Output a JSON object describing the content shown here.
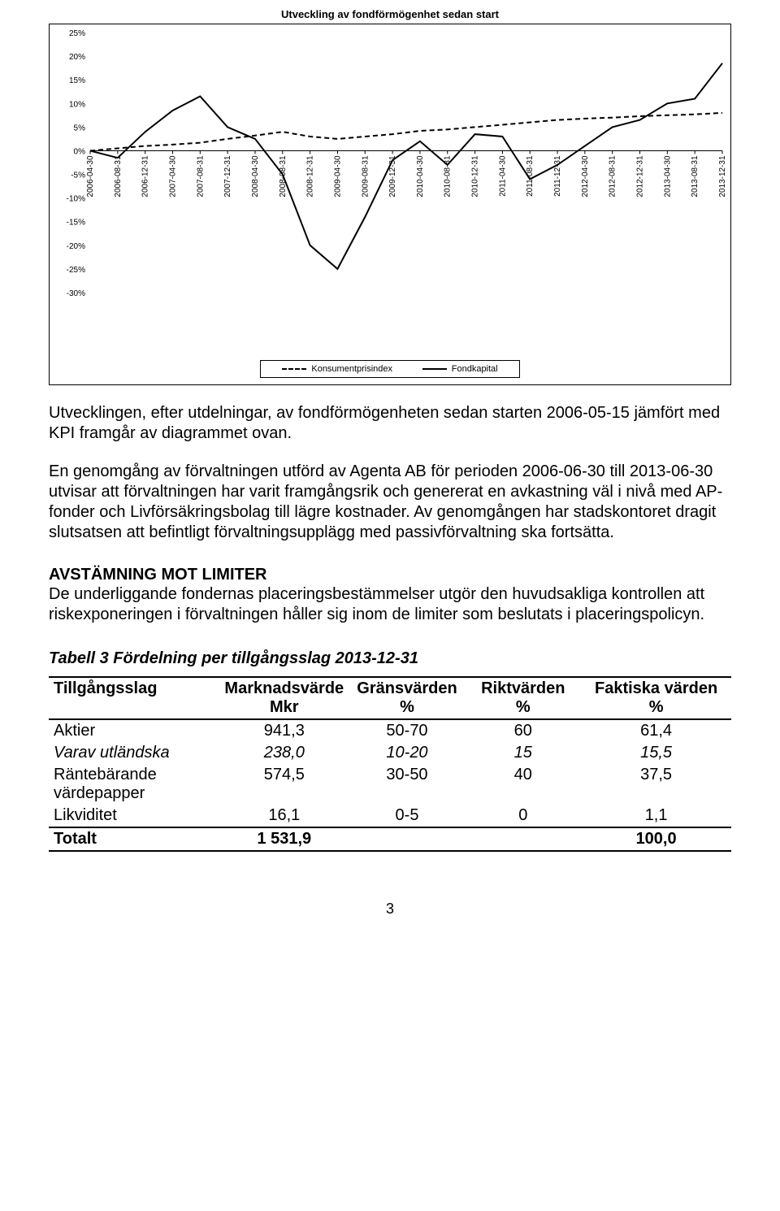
{
  "chart": {
    "title": "Utveckling av fondförmögenhet sedan start",
    "type": "line",
    "background_color": "#ffffff",
    "grid_color": "#000000",
    "line_color": "#000000",
    "font_size_axis": 10,
    "ylim": [
      -30,
      25
    ],
    "ytick_step": 5,
    "y_labels": [
      "25%",
      "20%",
      "15%",
      "10%",
      "5%",
      "0%",
      "-5%",
      "-10%",
      "-15%",
      "-20%",
      "-25%",
      "-30%"
    ],
    "x_labels": [
      "2006-04-30",
      "2006-08-31",
      "2006-12-31",
      "2007-04-30",
      "2007-08-31",
      "2007-12-31",
      "2008-04-30",
      "2008-08-31",
      "2008-12-31",
      "2009-04-30",
      "2009-08-31",
      "2009-12-31",
      "2010-04-30",
      "2010-08-31",
      "2010-12-31",
      "2011-04-30",
      "2011-08-31",
      "2011-12-31",
      "2012-04-30",
      "2012-08-31",
      "2012-12-31",
      "2013-04-30",
      "2013-08-31",
      "2013-12-31"
    ],
    "series": [
      {
        "name": "Konsumentprisindex",
        "dash": "6,4",
        "stroke_width": 2,
        "values": [
          0,
          0.5,
          1,
          1.3,
          1.7,
          2.5,
          3.2,
          4.0,
          3.0,
          2.5,
          3.0,
          3.5,
          4.2,
          4.5,
          5.0,
          5.5,
          6.0,
          6.5,
          6.8,
          7.0,
          7.3,
          7.5,
          7.7,
          8.0
        ]
      },
      {
        "name": "Fondkapital",
        "dash": "",
        "stroke_width": 2,
        "values": [
          0,
          -1.5,
          4,
          8.5,
          11.5,
          5,
          2.5,
          -5,
          -20,
          -25,
          -14,
          -2,
          2,
          -3,
          3.5,
          3,
          -6,
          -3,
          1,
          5,
          6.5,
          10,
          11,
          18.5
        ]
      }
    ],
    "legend": {
      "items": [
        "Konsumentprisindex",
        "Fondkapital"
      ]
    }
  },
  "paragraphs": {
    "p1": "Utvecklingen, efter utdelningar, av fondförmögenheten sedan starten 2006-05-15 jämfört med KPI framgår av diagrammet ovan.",
    "p2": "En genomgång av förvaltningen utförd av Agenta AB för perioden 2006-06-30 till 2013-06-30 utvisar att förvaltningen har varit framgångsrik och genererat en avkastning väl i nivå med AP-fonder och Livförsäkringsbolag till lägre kostnader. Av genomgången har stadskontoret dragit slutsatsen att befintligt förvaltningsupplägg med passivförvaltning ska fortsätta.",
    "heading": "AVSTÄMNING MOT LIMITER",
    "p3": "De underliggande fondernas placeringsbestämmelser utgör den huvudsakliga kontrollen att riskexponeringen i förvaltningen håller sig inom de limiter som beslutats i placeringspolicyn.",
    "table_title": "Tabell 3 Fördelning per tillgångsslag 2013-12-31"
  },
  "table": {
    "columns": [
      {
        "h1": "Tillgångsslag",
        "h2": ""
      },
      {
        "h1": "Marknadsvärde",
        "h2": "Mkr"
      },
      {
        "h1": "Gränsvärden",
        "h2": "%"
      },
      {
        "h1": "Riktvärden",
        "h2": "%"
      },
      {
        "h1": "Faktiska värden",
        "h2": "%"
      }
    ],
    "rows": [
      {
        "style": "",
        "cells": [
          "Aktier",
          "941,3",
          "50-70",
          "60",
          "61,4"
        ]
      },
      {
        "style": "italic",
        "cells": [
          "Varav utländska",
          "238,0",
          "10-20",
          "15",
          "15,5"
        ]
      },
      {
        "style": "",
        "cells": [
          "Räntebärande värdepapper",
          "574,5",
          "30-50",
          "40",
          "37,5"
        ]
      },
      {
        "style": "",
        "cells": [
          "Likviditet",
          "16,1",
          "0-5",
          "0",
          "1,1"
        ]
      },
      {
        "style": "total",
        "cells": [
          "Totalt",
          "1 531,9",
          "",
          "",
          "100,0"
        ]
      }
    ]
  },
  "page_number": "3"
}
